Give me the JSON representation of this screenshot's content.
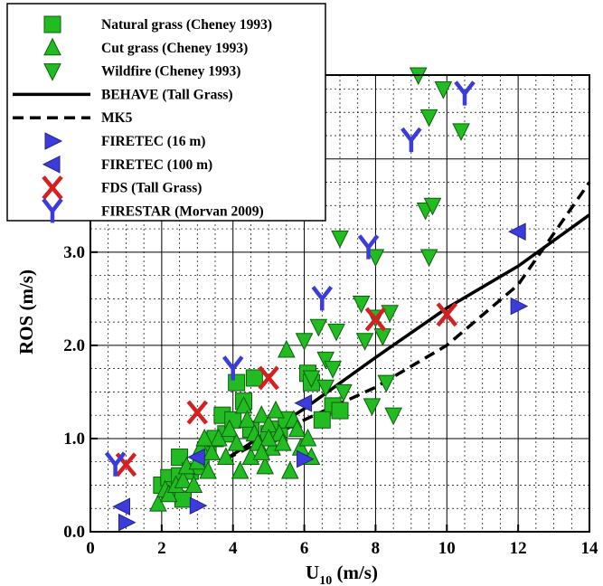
{
  "chart_data": {
    "type": "scatter",
    "title": "",
    "xlabel": "U",
    "xlabel_sub": "10",
    "xlabel_unit": " (m/s)",
    "ylabel": "ROS (m/s)",
    "xlim": [
      0,
      14
    ],
    "ylim": [
      0,
      4.9
    ],
    "x_ticks": [
      0,
      2,
      4,
      6,
      8,
      10,
      12,
      14
    ],
    "x_tick_labels": [
      "0",
      "2",
      "4",
      "6",
      "8",
      "10",
      "12",
      "14"
    ],
    "y_ticks": [
      0,
      1,
      2,
      3
    ],
    "y_tick_labels": [
      "0.0",
      "1.0",
      "2.0",
      "3.0"
    ],
    "grid": true,
    "legend_position": "top-left",
    "series": [
      {
        "name": "Natural grass (Cheney 1993)",
        "marker": "square",
        "color": "#22bb22",
        "points": [
          [
            2.0,
            0.5
          ],
          [
            2.2,
            0.58
          ],
          [
            2.3,
            0.45
          ],
          [
            2.5,
            0.6
          ],
          [
            2.5,
            0.8
          ],
          [
            2.6,
            0.35
          ],
          [
            2.8,
            0.65
          ],
          [
            3.1,
            0.7
          ],
          [
            3.3,
            0.9
          ],
          [
            3.5,
            1.0
          ],
          [
            3.7,
            1.25
          ],
          [
            3.8,
            1.05
          ],
          [
            4.0,
            1.2
          ],
          [
            4.1,
            1.6
          ],
          [
            4.3,
            1.4
          ],
          [
            4.5,
            1.1
          ],
          [
            4.6,
            1.65
          ],
          [
            5.0,
            1.05
          ],
          [
            5.3,
            1.1
          ],
          [
            5.5,
            1.2
          ],
          [
            6.1,
            1.7
          ],
          [
            6.2,
            1.6
          ],
          [
            6.8,
            1.35
          ],
          [
            7.0,
            1.3
          ],
          [
            6.5,
            1.2
          ]
        ]
      },
      {
        "name": "Cut grass (Cheney 1993)",
        "marker": "triangle-up",
        "color": "#22bb22",
        "points": [
          [
            1.9,
            0.3
          ],
          [
            2.1,
            0.45
          ],
          [
            2.2,
            0.4
          ],
          [
            2.4,
            0.5
          ],
          [
            2.6,
            0.55
          ],
          [
            2.7,
            0.7
          ],
          [
            2.9,
            0.5
          ],
          [
            3.0,
            0.75
          ],
          [
            3.1,
            0.9
          ],
          [
            3.3,
            0.65
          ],
          [
            3.4,
            0.85
          ],
          [
            3.6,
            1.0
          ],
          [
            3.8,
            0.8
          ],
          [
            3.9,
            1.1
          ],
          [
            4.1,
            0.95
          ],
          [
            4.2,
            0.65
          ],
          [
            4.3,
            1.35
          ],
          [
            4.4,
            1.2
          ],
          [
            4.5,
            0.8
          ],
          [
            4.6,
            1.05
          ],
          [
            4.7,
            0.95
          ],
          [
            4.8,
            1.25
          ],
          [
            4.9,
            0.7
          ],
          [
            5.0,
            1.15
          ],
          [
            5.1,
            0.9
          ],
          [
            5.2,
            1.3
          ],
          [
            5.3,
            1.05
          ],
          [
            5.4,
            0.95
          ],
          [
            5.5,
            1.95
          ],
          [
            5.6,
            0.65
          ],
          [
            5.7,
            1.2
          ],
          [
            5.8,
            1.1
          ],
          [
            5.9,
            0.9
          ],
          [
            6.1,
            1.0
          ],
          [
            6.2,
            0.8
          ],
          [
            5.0,
            1.0
          ],
          [
            4.8,
            0.85
          ],
          [
            3.2,
            1.0
          ]
        ]
      },
      {
        "name": "Wildfire (Cheney 1993)",
        "marker": "triangle-down",
        "color": "#22bb22",
        "points": [
          [
            6.0,
            2.05
          ],
          [
            6.2,
            1.65
          ],
          [
            6.4,
            2.2
          ],
          [
            6.6,
            1.85
          ],
          [
            6.8,
            1.75
          ],
          [
            6.9,
            2.15
          ],
          [
            7.0,
            3.15
          ],
          [
            7.1,
            1.5
          ],
          [
            7.6,
            2.45
          ],
          [
            7.7,
            2.05
          ],
          [
            7.9,
            1.35
          ],
          [
            8.0,
            2.95
          ],
          [
            8.2,
            2.1
          ],
          [
            8.4,
            2.35
          ],
          [
            8.5,
            1.25
          ],
          [
            8.3,
            1.6
          ],
          [
            9.2,
            4.9
          ],
          [
            9.4,
            3.45
          ],
          [
            9.5,
            4.45
          ],
          [
            9.5,
            2.95
          ],
          [
            9.6,
            3.5
          ],
          [
            9.9,
            4.75
          ],
          [
            10.4,
            4.3
          ],
          [
            8.0,
            2.3
          ],
          [
            6.6,
            1.55
          ]
        ]
      },
      {
        "name": "BEHAVE (Tall Grass)",
        "line": "solid",
        "color": "#000000",
        "x": [
          3.8,
          6,
          8,
          10,
          12,
          14
        ],
        "y": [
          0.78,
          1.32,
          1.87,
          2.4,
          2.85,
          3.4
        ]
      },
      {
        "name": "MK5",
        "line": "dashed",
        "color": "#000000",
        "x": [
          3.8,
          6,
          8,
          10,
          12,
          14
        ],
        "y": [
          0.78,
          1.2,
          1.55,
          2.0,
          2.65,
          3.75
        ]
      },
      {
        "name": "FIRETEC (16 m)",
        "marker": "triangle-right",
        "color": "#3c3cdc",
        "points": [
          [
            1.0,
            0.1
          ],
          [
            3.0,
            0.28
          ],
          [
            6.0,
            0.78
          ],
          [
            12.0,
            2.42
          ]
        ]
      },
      {
        "name": "FIRETEC (100 m)",
        "marker": "triangle-left",
        "color": "#3c3cdc",
        "points": [
          [
            0.9,
            0.27
          ],
          [
            3.0,
            0.8
          ],
          [
            6.0,
            1.38
          ],
          [
            12.0,
            3.22
          ]
        ]
      },
      {
        "name": "FDS (Tall Grass)",
        "marker": "x-letter",
        "color": "#d42020",
        "points": [
          [
            1.0,
            0.72
          ],
          [
            3.0,
            1.28
          ],
          [
            5.0,
            1.65
          ],
          [
            8.0,
            2.28
          ],
          [
            10.0,
            2.33
          ]
        ]
      },
      {
        "name": "FIRESTAR (Morvan 2009)",
        "marker": "y-letter",
        "color": "#3c3cdc",
        "points": [
          [
            0.7,
            0.72
          ],
          [
            4.0,
            1.75
          ],
          [
            6.5,
            2.5
          ],
          [
            7.8,
            3.05
          ],
          [
            9.0,
            4.2
          ],
          [
            10.5,
            4.7
          ]
        ]
      }
    ]
  }
}
